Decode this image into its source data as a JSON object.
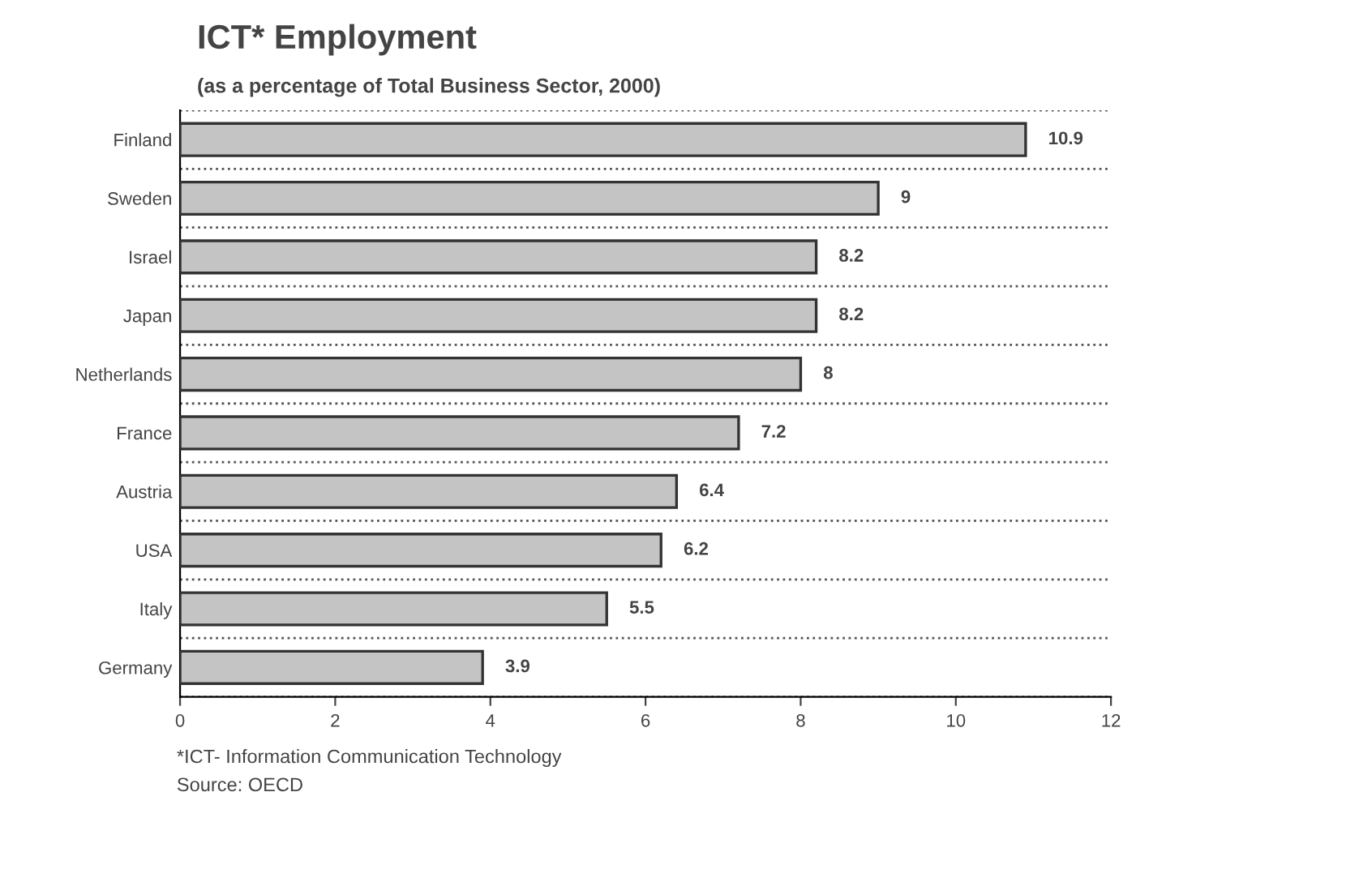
{
  "chart_data": {
    "type": "bar",
    "orientation": "horizontal",
    "title": "ICT* Employment",
    "subtitle": "(as a percentage of Total Business Sector, 2000)",
    "categories": [
      "Finland",
      "Sweden",
      "Israel",
      "Japan",
      "Netherlands",
      "France",
      "Austria",
      "USA",
      "Italy",
      "Germany"
    ],
    "values": [
      10.9,
      9,
      8.2,
      8.2,
      8,
      7.2,
      6.4,
      6.2,
      5.5,
      3.9
    ],
    "color": "#c4c4c4",
    "data_labels": true,
    "xlim": [
      0,
      12
    ],
    "xticks": [
      0,
      2,
      4,
      6,
      8,
      10,
      12
    ],
    "grid": "y",
    "line_style": "dotted",
    "annotations": [
      "*ICT- Information Communication Technology",
      "Source: OECD"
    ]
  }
}
